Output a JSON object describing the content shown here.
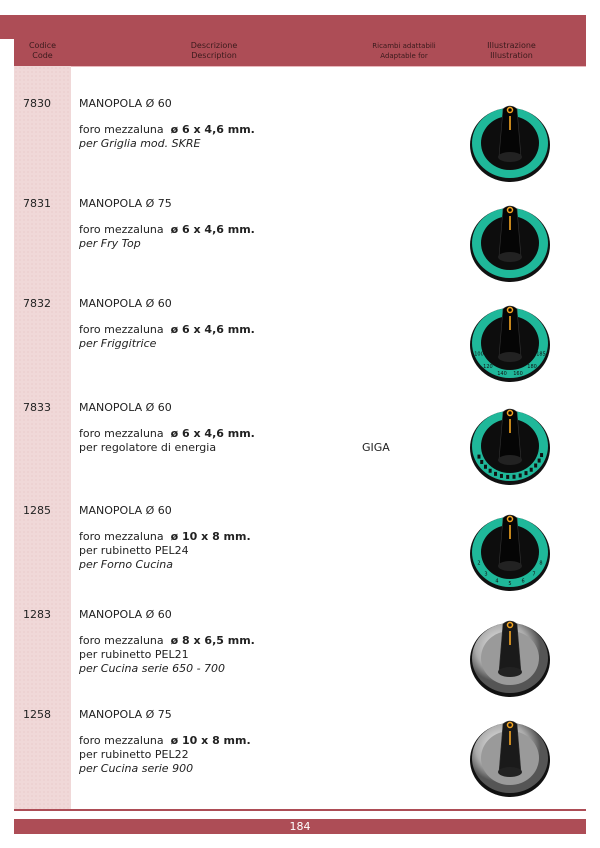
{
  "header": {
    "code": [
      "Codice",
      "Code"
    ],
    "description": [
      "Descrizione",
      "Description"
    ],
    "adaptable": [
      "Ricambi adattabili",
      "Adaptable for"
    ],
    "illustration": [
      "Illustrazione",
      "Illustration"
    ]
  },
  "colors": {
    "brand": "#ad4d56",
    "code_column": "#f0d8d8",
    "knob_teal": "#1fb89a",
    "knob_indicator": "#f5a623"
  },
  "items": [
    {
      "code": "7830",
      "title": "MANOPOLA Ø 60",
      "hole_label": "foro mezzaluna",
      "hole_size": "ø 6 x 4,6 mm.",
      "line2": "",
      "line3": "per Griglia  mod. SKRE",
      "line3_italic": true,
      "adaptable": "",
      "knob": "teal-plain"
    },
    {
      "code": "7831",
      "title": "MANOPOLA  Ø 75",
      "hole_label": "foro mezzaluna",
      "hole_size": "ø 6 x 4,6 mm.",
      "line2": "",
      "line3": "per Fry Top",
      "line3_italic": true,
      "adaptable": "",
      "knob": "teal-plain"
    },
    {
      "code": "7832",
      "title": "MANOPOLA  Ø 60",
      "hole_label": "foro mezzaluna",
      "hole_size": "ø 6 x 4,6 mm.",
      "line2": "",
      "line3": "per Friggitrice",
      "line3_italic": true,
      "adaptable": "",
      "knob": "teal-temperature",
      "scale": [
        "100",
        "120",
        "140",
        "160",
        "180",
        "185"
      ]
    },
    {
      "code": "7833",
      "title": "MANOPOLA Ø 60",
      "hole_label": "foro mezzaluna",
      "hole_size": "ø 6 x 4,6 mm.",
      "line2": "per regolatore di energia",
      "line3": "",
      "line3_italic": false,
      "adaptable": "GIGA",
      "knob": "teal-energy"
    },
    {
      "code": "1285",
      "title": "MANOPOLA Ø 60",
      "hole_label": "foro mezzaluna",
      "hole_size": "ø 10 x 8 mm.",
      "line2": "per rubinetto PEL24",
      "line3": "per Forno Cucina",
      "line3_italic": true,
      "adaptable": "",
      "knob": "teal-numbers",
      "scale": [
        "2",
        "3",
        "4",
        "5",
        "6",
        "7",
        "8"
      ]
    },
    {
      "code": "1283",
      "title": "MANOPOLA Ø 60",
      "hole_label": "foro mezzaluna",
      "hole_size": "ø 8 x 6,5 mm.",
      "line2": "per rubinetto PEL21",
      "line3": "per Cucina serie 650 - 700",
      "line3_italic": true,
      "adaptable": "",
      "knob": "silver"
    },
    {
      "code": "1258",
      "title": "MANOPOLA Ø 75",
      "hole_label": "foro mezzaluna",
      "hole_size": "ø 10 x 8 mm.",
      "line2": "per rubinetto PEL22",
      "line3": "per Cucina serie 900",
      "line3_italic": true,
      "adaptable": "",
      "knob": "silver"
    }
  ],
  "footer": {
    "page_number": "184"
  }
}
